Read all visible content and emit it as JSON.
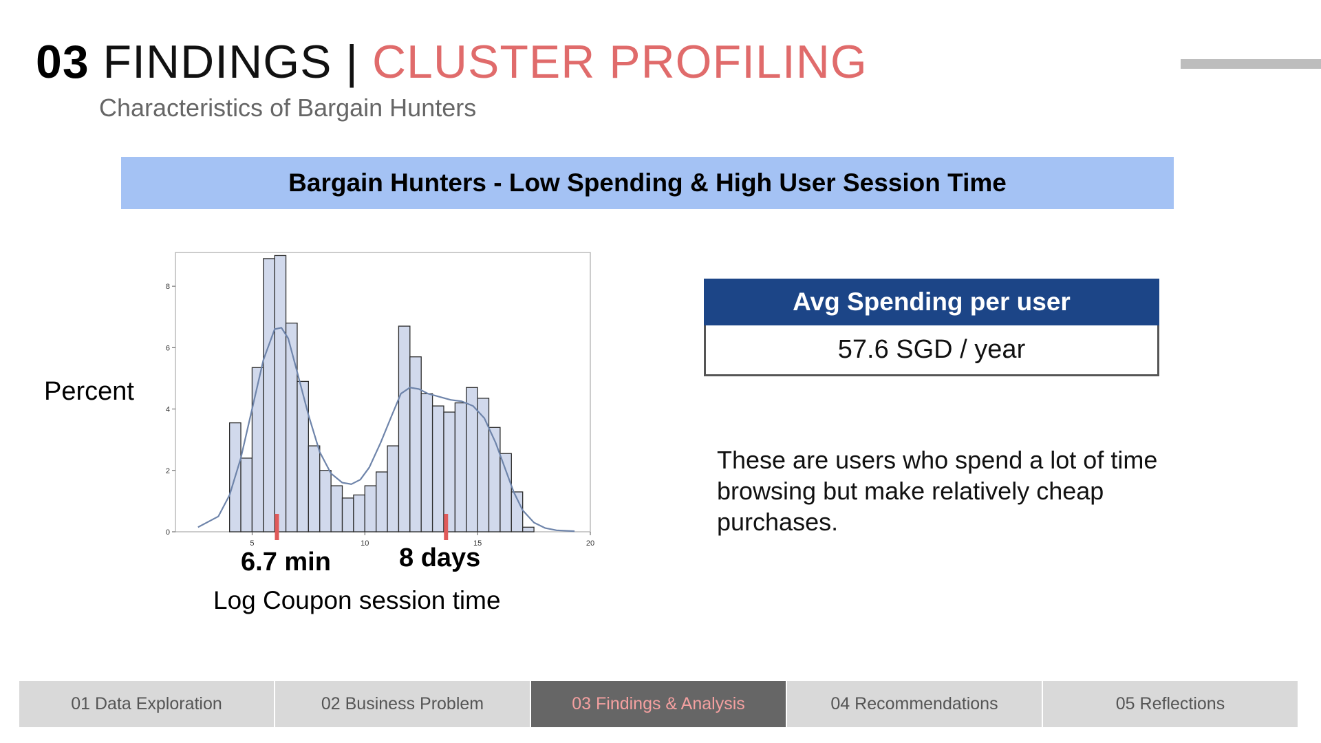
{
  "header": {
    "title_number": "03",
    "title_main": "FINDINGS",
    "title_separator": "|",
    "title_accent": "CLUSTER PROFILING",
    "subtitle": "Characteristics of Bargain Hunters",
    "accent_color": "#e06b6b"
  },
  "banner": {
    "text": "Bargain Hunters - Low Spending & High User Session Time",
    "color": "#a4c2f4"
  },
  "chart_data": {
    "type": "bar",
    "bins": [
      {
        "x0": 4.0,
        "x1": 4.5,
        "y": 3.55
      },
      {
        "x0": 4.5,
        "x1": 5.0,
        "y": 2.4
      },
      {
        "x0": 5.0,
        "x1": 5.5,
        "y": 5.35
      },
      {
        "x0": 5.5,
        "x1": 6.0,
        "y": 8.9
      },
      {
        "x0": 6.0,
        "x1": 6.5,
        "y": 9.0
      },
      {
        "x0": 6.5,
        "x1": 7.0,
        "y": 6.8
      },
      {
        "x0": 7.0,
        "x1": 7.5,
        "y": 4.9
      },
      {
        "x0": 7.5,
        "x1": 8.0,
        "y": 2.8
      },
      {
        "x0": 8.0,
        "x1": 8.5,
        "y": 2.0
      },
      {
        "x0": 8.5,
        "x1": 9.0,
        "y": 1.5
      },
      {
        "x0": 9.0,
        "x1": 9.5,
        "y": 1.1
      },
      {
        "x0": 9.5,
        "x1": 10.0,
        "y": 1.2
      },
      {
        "x0": 10.0,
        "x1": 10.5,
        "y": 1.5
      },
      {
        "x0": 10.5,
        "x1": 11.0,
        "y": 1.95
      },
      {
        "x0": 11.0,
        "x1": 11.5,
        "y": 2.8
      },
      {
        "x0": 11.5,
        "x1": 12.0,
        "y": 6.7
      },
      {
        "x0": 12.0,
        "x1": 12.5,
        "y": 5.7
      },
      {
        "x0": 12.5,
        "x1": 13.0,
        "y": 4.5
      },
      {
        "x0": 13.0,
        "x1": 13.5,
        "y": 4.1
      },
      {
        "x0": 13.5,
        "x1": 14.0,
        "y": 3.9
      },
      {
        "x0": 14.0,
        "x1": 14.5,
        "y": 4.2
      },
      {
        "x0": 14.5,
        "x1": 15.0,
        "y": 4.7
      },
      {
        "x0": 15.0,
        "x1": 15.5,
        "y": 4.35
      },
      {
        "x0": 15.5,
        "x1": 16.0,
        "y": 3.4
      },
      {
        "x0": 16.0,
        "x1": 16.5,
        "y": 2.55
      },
      {
        "x0": 16.5,
        "x1": 17.0,
        "y": 1.3
      },
      {
        "x0": 17.0,
        "x1": 17.5,
        "y": 0.15
      }
    ],
    "density": {
      "x": [
        2.6,
        3.5,
        4.0,
        4.5,
        5.0,
        5.5,
        6.0,
        6.3,
        6.6,
        7.0,
        7.5,
        8.0,
        8.5,
        9.0,
        9.4,
        9.8,
        10.2,
        10.7,
        11.2,
        11.6,
        12.0,
        12.4,
        12.8,
        13.3,
        13.8,
        14.3,
        14.8,
        15.3,
        15.8,
        16.2,
        16.6,
        17.0,
        17.5,
        18.0,
        18.5,
        19.3
      ],
      "y": [
        0.15,
        0.5,
        1.2,
        2.4,
        4.0,
        5.6,
        6.6,
        6.65,
        6.3,
        5.2,
        3.8,
        2.6,
        1.9,
        1.6,
        1.55,
        1.7,
        2.1,
        2.9,
        3.8,
        4.5,
        4.7,
        4.65,
        4.5,
        4.4,
        4.3,
        4.25,
        4.1,
        3.7,
        2.9,
        2.1,
        1.3,
        0.7,
        0.3,
        0.12,
        0.05,
        0.02
      ]
    },
    "markers": [
      {
        "x": 6.1,
        "label": "6.7 min"
      },
      {
        "x": 13.6,
        "label": "8 days"
      }
    ],
    "xlim": [
      1.6,
      20
    ],
    "ylim": [
      0,
      9.1
    ],
    "xticks": [
      5,
      10,
      15,
      20
    ],
    "yticks": [
      0,
      2,
      4,
      6,
      8
    ],
    "xlabel": "Log Coupon session time",
    "ylabel": "Percent",
    "bar_color": "#d1d9ec",
    "line_color": "#6e84aa",
    "marker_color": "#e05a5a",
    "grid": false
  },
  "card": {
    "header": "Avg Spending per user",
    "value": "57.6 SGD / year",
    "header_color": "#1c4587"
  },
  "description": "These are users who spend a lot of time browsing but make relatively cheap purchases.",
  "nav": {
    "items": [
      {
        "label": "01 Data Exploration"
      },
      {
        "label": "02 Business Problem"
      },
      {
        "label": "03 Findings & Analysis"
      },
      {
        "label": "04 Recommendations"
      },
      {
        "label": "05 Reflections"
      }
    ],
    "active_index": 2
  }
}
